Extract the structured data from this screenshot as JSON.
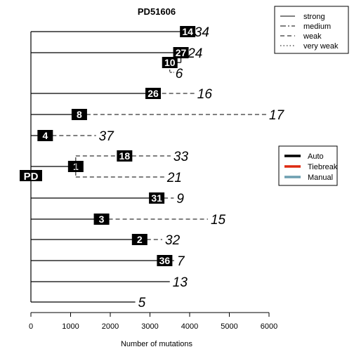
{
  "chart_data": {
    "type": "tree",
    "title": "PD51606",
    "xlabel": "Number of mutations",
    "xlim": [
      0,
      6000
    ],
    "xticks": [
      "0",
      "1000",
      "2000",
      "3000",
      "4000",
      "5000",
      "6000"
    ],
    "root_label": "PD",
    "line_legend": {
      "entries": [
        {
          "label": "strong",
          "dash": "solid"
        },
        {
          "label": "medium",
          "dash": "dashdot"
        },
        {
          "label": "weak",
          "dash": "dashed"
        },
        {
          "label": "very weak",
          "dash": "dotted"
        }
      ]
    },
    "color_legend": {
      "entries": [
        {
          "label": "Auto",
          "color": "#000000"
        },
        {
          "label": "Tiebreak",
          "color": "#dd2a10"
        },
        {
          "label": "Manual",
          "color": "#6c9fb0"
        }
      ]
    },
    "branches": [
      {
        "id": "14",
        "leaf": "34",
        "start": 0,
        "node": 3950,
        "end": 4050,
        "solid_to": 3950,
        "tail": "dashed"
      },
      {
        "id": "27",
        "leaf": "24",
        "start": 0,
        "node": 3780,
        "end": 3880,
        "solid_to": 3780,
        "tail": "dashed"
      },
      {
        "id": "10",
        "leaf": "6",
        "start": 3780,
        "node": 3500,
        "end": 3500,
        "solid_to": 3500,
        "tail": "dashed"
      },
      {
        "id": "26",
        "leaf": "16",
        "start": 0,
        "node": 3080,
        "end": 4120,
        "solid_to": 2950,
        "tail": "dashed"
      },
      {
        "id": "8",
        "leaf": "17",
        "start": 0,
        "node": 1220,
        "end": 5930,
        "solid_to": 1220,
        "tail": "dashed"
      },
      {
        "id": "4",
        "leaf": "37",
        "start": 0,
        "node": 360,
        "end": 1640,
        "solid_to": 360,
        "tail": "dashed"
      },
      {
        "id": "1",
        "leaf": "",
        "start": 0,
        "node": 1130,
        "end": 1130,
        "solid_to": 1130,
        "tail": "none"
      },
      {
        "id": "18",
        "leaf": "33",
        "start": 1130,
        "node": 2360,
        "end": 3520,
        "solid_to": 1130,
        "tail": "dashed"
      },
      {
        "id": "",
        "leaf": "21",
        "start": 1130,
        "node": 1130,
        "end": 3360,
        "solid_to": 1130,
        "tail": "dashed"
      },
      {
        "id": "31",
        "leaf": "9",
        "start": 0,
        "node": 3170,
        "end": 3600,
        "solid_to": 3170,
        "tail": "dashed"
      },
      {
        "id": "3",
        "leaf": "15",
        "start": 0,
        "node": 1780,
        "end": 4460,
        "solid_to": 1780,
        "tail": "dashed"
      },
      {
        "id": "2",
        "leaf": "32",
        "start": 0,
        "node": 2740,
        "end": 3310,
        "solid_to": 2740,
        "tail": "dashed"
      },
      {
        "id": "36",
        "leaf": "7",
        "start": 0,
        "node": 3370,
        "end": 3610,
        "solid_to": 3370,
        "tail": "dashed"
      },
      {
        "id": "",
        "leaf": "13",
        "start": 0,
        "node": 3500,
        "end": 3500,
        "solid_to": 3500,
        "tail": "none"
      },
      {
        "id": "",
        "leaf": "5",
        "start": 0,
        "node": 2630,
        "end": 2630,
        "solid_to": 2630,
        "tail": "none"
      }
    ]
  }
}
